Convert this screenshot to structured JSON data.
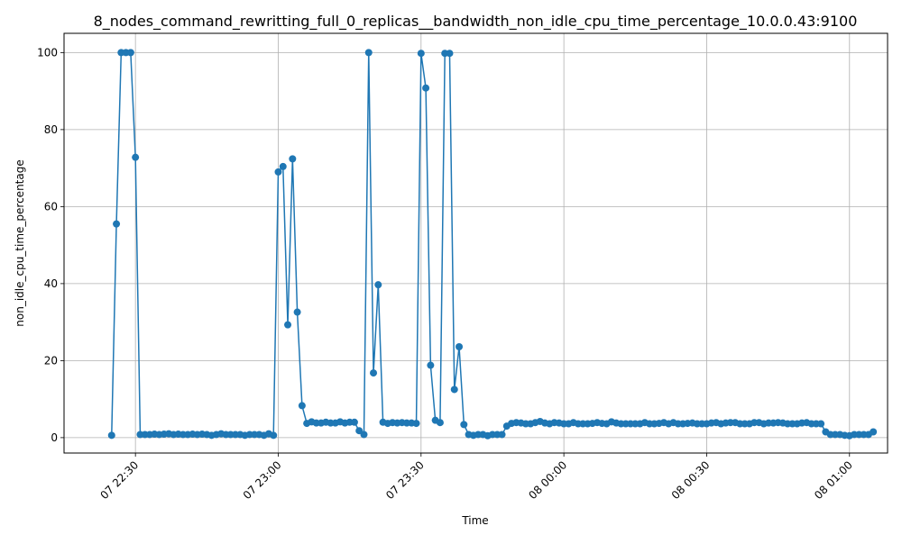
{
  "chart_data": {
    "type": "line",
    "title": "8_nodes_command_rewritting_full_0_replicas__bandwidth_non_idle_cpu_time_percentage_10.0.0.43:9100",
    "xlabel": "Time",
    "ylabel": "non_idle_cpu_time_percentage",
    "xlim": [
      "07 22:15",
      "08 01:08"
    ],
    "ylim": [
      -4,
      105
    ],
    "grid": true,
    "x_ticks": [
      "07 22:30",
      "07 23:00",
      "07 23:30",
      "08 00:00",
      "08 00:30",
      "08 01:00"
    ],
    "y_ticks": [
      0,
      20,
      40,
      60,
      80,
      100
    ],
    "series_color": "#1f77b4",
    "series": [
      {
        "start": "07 22:25",
        "step_minutes": 1,
        "values": [
          0.6,
          55.5,
          100.0,
          100.0,
          100.0,
          72.8,
          0.8,
          0.8,
          0.8,
          0.9,
          0.8,
          0.9,
          1.0,
          0.8,
          0.9,
          0.8,
          0.8,
          0.9,
          0.8,
          0.9,
          0.8,
          0.6,
          0.8,
          1.0,
          0.8,
          0.8,
          0.8,
          0.8,
          0.6,
          0.8,
          0.8,
          0.8,
          0.6,
          1.0,
          0.6,
          69.0,
          70.4,
          29.3,
          72.4,
          32.6,
          8.3,
          3.7,
          4.1,
          3.8,
          3.8,
          4.0,
          3.8,
          3.8,
          4.1,
          3.8,
          4.0,
          4.0,
          1.8,
          0.8,
          100.0,
          16.8,
          39.7,
          4.0,
          3.7,
          3.9,
          3.8,
          3.9,
          3.8,
          3.8,
          3.7,
          99.8,
          90.8,
          18.8,
          4.5,
          3.9,
          99.8,
          99.8,
          12.5,
          23.6,
          3.4,
          0.8,
          0.6,
          0.8,
          0.8,
          0.5,
          0.8,
          0.8,
          0.8,
          3.0,
          3.7,
          3.9,
          3.8,
          3.6,
          3.6,
          3.9,
          4.2,
          3.8,
          3.6,
          3.9,
          3.8,
          3.6,
          3.6,
          3.9,
          3.6,
          3.6,
          3.6,
          3.7,
          3.9,
          3.7,
          3.6,
          4.1,
          3.8,
          3.6,
          3.6,
          3.6,
          3.6,
          3.6,
          3.9,
          3.6,
          3.6,
          3.7,
          3.9,
          3.6,
          3.9,
          3.6,
          3.6,
          3.7,
          3.8,
          3.6,
          3.6,
          3.6,
          3.8,
          3.9,
          3.6,
          3.8,
          3.9,
          3.9,
          3.6,
          3.6,
          3.6,
          3.9,
          3.9,
          3.6,
          3.8,
          3.8,
          3.9,
          3.8,
          3.6,
          3.6,
          3.6,
          3.8,
          3.9,
          3.6,
          3.6,
          3.6,
          1.5,
          0.8,
          0.8,
          0.8,
          0.6,
          0.5,
          0.8,
          0.8,
          0.8,
          0.8,
          1.5
        ]
      }
    ]
  }
}
